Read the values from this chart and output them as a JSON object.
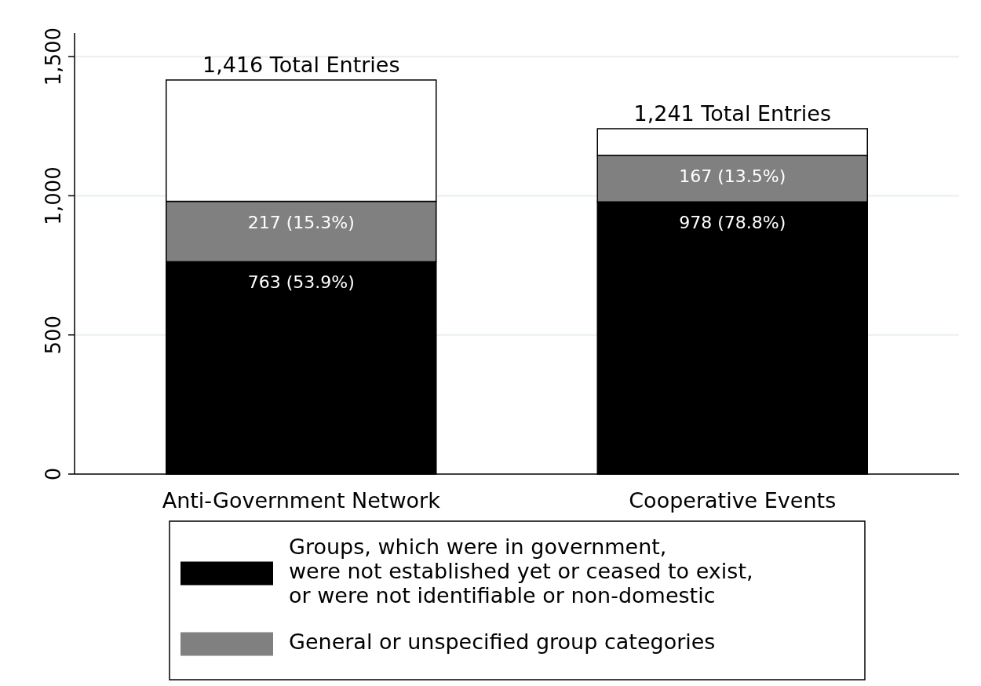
{
  "chart_data": {
    "type": "bar",
    "stacked": true,
    "categories": [
      "Anti-Government Network",
      "Cooperative Events"
    ],
    "series": [
      {
        "name": "Groups, which were in government,\nwere not established yet or ceased to exist,\nor were not identifiable or non-domestic",
        "color": "#000000",
        "values": [
          763,
          978
        ],
        "value_labels": [
          "763 (53.9%)",
          "978 (78.8%)"
        ]
      },
      {
        "name": "General or unspecified group categories",
        "color": "#808080",
        "values": [
          217,
          167
        ],
        "value_labels": [
          "217 (15.3%)",
          "167 (13.5%)"
        ]
      },
      {
        "color": "#ffffff",
        "values": [
          436,
          96
        ]
      }
    ],
    "totals": [
      "1,416 Total Entries",
      "1,241 Total Entries"
    ],
    "ylim": [
      0,
      1585
    ],
    "yticks": [
      {
        "value": 0,
        "label": "0"
      },
      {
        "value": 500,
        "label": "500"
      },
      {
        "value": 1000,
        "label": "1,000"
      },
      {
        "value": 1500,
        "label": "1,500"
      }
    ],
    "grid": "y",
    "legend": "bottom"
  }
}
